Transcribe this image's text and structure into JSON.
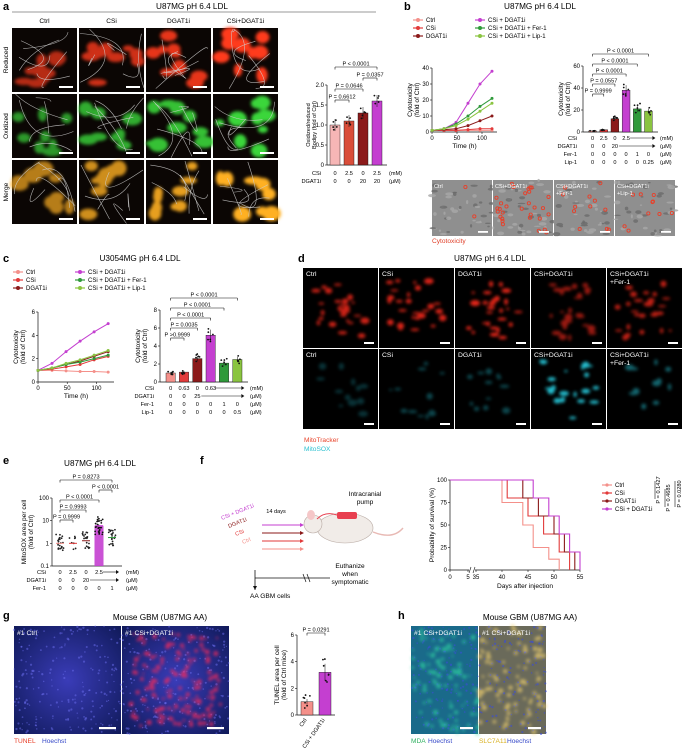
{
  "panels": {
    "a": {
      "letter": "a",
      "title": "U87MG pH 6.4 LDL",
      "columns": [
        "Ctrl",
        "CSi",
        "DGAT1i",
        "CSi+DGAT1i"
      ],
      "rows": [
        "Reduced",
        "Oxidized",
        "Merge"
      ],
      "pvals": [
        "P < 0.0001",
        "P = 0.0357",
        "P = 0.0646",
        "P = 0.6612"
      ],
      "ylabel_1": "Oxidized/reduced",
      "ylabel_2": "Bodipy (fold of Ctrl)",
      "yticks": [
        "0",
        "0.5",
        "1.0",
        "1.5",
        "2.0"
      ],
      "treat": {
        "CSi": {
          "label": "CSi",
          "vals": [
            "0",
            "2.5",
            "0",
            "2.5"
          ],
          "unit": "(mM)"
        },
        "DGAT1i": {
          "label": "DGAT1i",
          "vals": [
            "0",
            "0",
            "20",
            "20"
          ],
          "unit": "(μM)"
        }
      }
    },
    "b": {
      "letter": "b",
      "title": "U87MG pH 6.4 LDL",
      "legend": [
        "Ctrl",
        "CSi",
        "DGAT1i",
        "CSi + DGAT1i",
        "CSi + DGAT1i + Fer-1",
        "CSi + DGAT1i + Lip-1"
      ],
      "line_ylabel_1": "Cytotoxicity",
      "line_ylabel_2": "(fold of Ctrl)",
      "line_xlabel": "Time (h)",
      "line_yticks": [
        "0",
        "10",
        "20",
        "30",
        "40"
      ],
      "line_xticks": [
        "0",
        "50",
        "100"
      ],
      "bar_yticks": [
        "0",
        "20",
        "40",
        "60"
      ],
      "pvals": [
        "P < 0.0001",
        "P < 0.0001",
        "P < 0.0001",
        "P = 0.0557",
        "P = 0.9999"
      ],
      "treat": {
        "CSi": {
          "label": "CSi",
          "vals": [
            "0",
            "2.5",
            "0",
            "2.5"
          ],
          "unit": "(mM)"
        },
        "DGAT1i": {
          "label": "DGAT1i",
          "vals": [
            "0",
            "0",
            "20"
          ],
          "unit": "(μM)"
        },
        "Fer": {
          "label": "Fer-1",
          "vals": [
            "0",
            "0",
            "0",
            "0",
            "1",
            "0"
          ],
          "unit": "(μM)"
        },
        "Lip": {
          "label": "Lip-1",
          "vals": [
            "0",
            "0",
            "0",
            "0",
            "0",
            "0.25"
          ],
          "unit": "(μM)"
        }
      },
      "micro": [
        "Ctrl",
        "CSi+DGAT1i",
        "CSi+DGAT1i",
        "CSi+DGAT1i"
      ],
      "micro_sub": [
        "+Fer-1",
        "+Lip-1"
      ],
      "micro_caption": "Cytotoxicity"
    },
    "c": {
      "letter": "c",
      "title": "U3054MG pH 6.4 LDL",
      "legend": [
        "Ctrl",
        "CSi",
        "DGAT1i",
        "CSi + DGAT1i",
        "CSi + DGAT1i + Fer-1",
        "CSi + DGAT1i + Lip-1"
      ],
      "line_ylabel_1": "Cytotoxicity",
      "line_ylabel_2": "(fold of Ctrl)",
      "line_xlabel": "Time (h)",
      "line_yticks": [
        "0",
        "2",
        "4",
        "6"
      ],
      "line_xticks": [
        "0",
        "50",
        "100"
      ],
      "bar_ylabel_1": "Cytotoxicity",
      "bar_ylabel_2": "(fold of Ctrl)",
      "bar_yticks": [
        "0",
        "2",
        "4",
        "6",
        "8"
      ],
      "pvals": [
        "P < 0.0001",
        "P < 0.0001",
        "P < 0.0001",
        "P = 0.0035",
        "P >0.9999"
      ],
      "treat": {
        "CSi": {
          "label": "CSi",
          "vals": [
            "0",
            "0.63",
            "0",
            "0.63"
          ],
          "unit": "(mM)"
        },
        "DGAT1i": {
          "label": "DGAT1i",
          "vals": [
            "0",
            "0",
            "25"
          ],
          "unit": "(μM)"
        },
        "Fer": {
          "label": "Fer-1",
          "vals": [
            "0",
            "0",
            "0",
            "0",
            "1",
            "0"
          ],
          "unit": "(μM)"
        },
        "Lip": {
          "label": "Lip-1",
          "vals": [
            "0",
            "0",
            "0",
            "0",
            "0",
            "0.5"
          ],
          "unit": "(μM)"
        }
      }
    },
    "d": {
      "letter": "d",
      "title": "U87MG pH 6.4 LDL",
      "columns": [
        "Ctrl",
        "CSi",
        "DGAT1i",
        "CSi+DGAT1i",
        "CSi+DGAT1i"
      ],
      "col5_sub": "+Fer-1",
      "legend_red": "MitoTracker",
      "legend_cyan": "MitoSOX"
    },
    "e": {
      "letter": "e",
      "title": "U87MG pH 6.4 LDL",
      "ylabel_1": "MitoSOX area per cell",
      "ylabel_2": "(fold of Ctrl)",
      "yticks": [
        "0.1",
        "1",
        "10",
        "100"
      ],
      "pvals": [
        "P = 0.8273",
        "P < 0.0001",
        "P < 0.0001",
        "P = 0.9993",
        "P = 0.9999"
      ],
      "treat": {
        "CSi": {
          "label": "CSi",
          "vals": [
            "0",
            "2.5",
            "0",
            "2.5"
          ],
          "unit": "(mM)"
        },
        "DGAT1i": {
          "label": "DGAT1i",
          "vals": [
            "0",
            "0",
            "20"
          ],
          "unit": "(μM)"
        },
        "Fer": {
          "label": "Fer-1",
          "vals": [
            "0",
            "0",
            "0",
            "0",
            "1"
          ],
          "unit": "(μM)"
        }
      }
    },
    "f": {
      "letter": "f",
      "groups": [
        "CSi + DGAT1i",
        "DGAT1i",
        "CSi",
        "Ctrl"
      ],
      "pump_1": "Intracranial",
      "pump_2": "pump",
      "days": "14 days",
      "euth_1": "Euthanize",
      "euth_2": "when",
      "euth_3": "symptomatic",
      "cells": "AA GBM cells",
      "ylabel": "Probability of survival (%)",
      "xlabel": "Days after injection",
      "yticks": [
        "0",
        "25",
        "50",
        "75",
        "100"
      ],
      "xticks": [
        "0",
        "5",
        "35",
        "40",
        "45",
        "50",
        "55"
      ],
      "legend": [
        "Ctrl",
        "CSi",
        "DGAT1i",
        "CSi + DGAT1i"
      ],
      "pvals": [
        "P = 0.1427",
        "P = 0.4685",
        "P = 0.0280"
      ]
    },
    "g": {
      "letter": "g",
      "title": "Mouse GBM (U87MG AA)",
      "img1": "#1 Ctrl",
      "img2": "#1 CSi+DGAT1i",
      "legend_red": "TUNEL",
      "legend_blue": "Hoechst",
      "ylabel_1": "TUNEL area per cell",
      "ylabel_2": "(fold of Ctrl mice)",
      "yticks": [
        "0",
        "2",
        "4",
        "6"
      ],
      "pval": "P = 0.0291",
      "xcats": [
        "Ctrl",
        "CSi + DGAT1i"
      ]
    },
    "h": {
      "letter": "h",
      "title": "Mouse GBM (U87MG AA)",
      "img1": "#1 CSi+DGAT1i",
      "img2": "#1 CSi+DGAT1i",
      "legend_green": "MDA",
      "legend_blue1": "Hoechst",
      "legend_yellow": "SLC7A11",
      "legend_blue2": "Hoechst"
    }
  },
  "chart_data": [
    {
      "type": "bar",
      "panel": "a",
      "categories": [
        "CSi 0 / DGAT1i 0",
        "CSi 2.5 / DGAT1i 0",
        "CSi 0 / DGAT1i 20",
        "CSi 2.5 / DGAT1i 20"
      ],
      "values": [
        1.0,
        1.1,
        1.3,
        1.6
      ],
      "ylabel": "Oxidized/reduced Bodipy (fold of Ctrl)",
      "ylim": [
        0,
        2.0
      ]
    },
    {
      "type": "line",
      "panel": "b",
      "x": [
        0,
        24,
        48,
        72,
        96,
        120
      ],
      "series": [
        {
          "name": "Ctrl",
          "values": [
            1,
            1,
            1,
            1,
            1,
            1
          ]
        },
        {
          "name": "CSi",
          "values": [
            1,
            1,
            1,
            1.5,
            2,
            2
          ]
        },
        {
          "name": "DGAT1i",
          "values": [
            1,
            1.5,
            2,
            4,
            7,
            10
          ]
        },
        {
          "name": "CSi + DGAT1i",
          "values": [
            1,
            2,
            6,
            18,
            30,
            38
          ]
        },
        {
          "name": "CSi + DGAT1i + Fer-1",
          "values": [
            1,
            2,
            5,
            10,
            16,
            21
          ]
        },
        {
          "name": "CSi + DGAT1i + Lip-1",
          "values": [
            1,
            2,
            4,
            8,
            13,
            18
          ]
        }
      ],
      "xlabel": "Time (h)",
      "ylabel": "Cytotoxicity (fold of Ctrl)",
      "ylim": [
        0,
        40
      ]
    },
    {
      "type": "bar",
      "panel": "b",
      "categories": [
        "Ctrl",
        "CSi",
        "DGAT1i",
        "CSi + DGAT1i",
        "CSi + DGAT1i + Fer-1",
        "CSi + DGAT1i + Lip-1"
      ],
      "values": [
        1,
        2,
        12,
        38,
        21,
        19
      ],
      "ylabel": "Cytotoxicity (fold of Ctrl)",
      "ylim": [
        0,
        60
      ]
    },
    {
      "type": "line",
      "panel": "c",
      "x": [
        0,
        24,
        48,
        72,
        96,
        120
      ],
      "series": [
        {
          "name": "Ctrl",
          "values": [
            1,
            1,
            0.95,
            0.9,
            0.9,
            0.85
          ]
        },
        {
          "name": "CSi",
          "values": [
            1,
            1.1,
            1.3,
            1.5,
            1.9,
            2.2
          ]
        },
        {
          "name": "DGAT1i",
          "values": [
            1,
            1.2,
            1.5,
            1.8,
            2.2,
            2.6
          ]
        },
        {
          "name": "CSi + DGAT1i",
          "values": [
            1,
            1.6,
            2.6,
            3.5,
            4.3,
            5.0
          ]
        },
        {
          "name": "CSi + DGAT1i + Fer-1",
          "values": [
            1,
            1.2,
            1.5,
            1.7,
            2.0,
            2.3
          ]
        },
        {
          "name": "CSi + DGAT1i + Lip-1",
          "values": [
            1,
            1.2,
            1.6,
            1.9,
            2.3,
            2.7
          ]
        }
      ],
      "xlabel": "Time (h)",
      "ylabel": "Cytotoxicity (fold of Ctrl)",
      "ylim": [
        0,
        6
      ]
    },
    {
      "type": "bar",
      "panel": "c",
      "categories": [
        "Ctrl",
        "CSi",
        "DGAT1i",
        "CSi + DGAT1i",
        "CSi + DGAT1i + Fer-1",
        "CSi + DGAT1i + Lip-1"
      ],
      "values": [
        1.0,
        1.1,
        2.6,
        5.2,
        2.1,
        2.5
      ],
      "ylabel": "Cytotoxicity (fold of Ctrl)",
      "ylim": [
        0,
        8
      ]
    },
    {
      "type": "scatter",
      "panel": "e",
      "categories": [
        "Ctrl",
        "CSi",
        "DGAT1i",
        "CSi + DGAT1i",
        "CSi + DGAT1i + Fer-1"
      ],
      "values": [
        1.0,
        1.0,
        1.3,
        6.0,
        1.8
      ],
      "ylabel": "MitoSOX area per cell (fold of Ctrl)",
      "ylim": [
        0.1,
        100
      ],
      "yscale": "log"
    },
    {
      "type": "line",
      "panel": "f",
      "series": [
        {
          "name": "Ctrl",
          "x": [
            0,
            38,
            40,
            44,
            46,
            49,
            51
          ],
          "values": [
            100,
            100,
            75,
            50,
            25,
            12,
            0
          ]
        },
        {
          "name": "CSi",
          "x": [
            0,
            39,
            41,
            45,
            48,
            51,
            53
          ],
          "values": [
            100,
            100,
            80,
            60,
            40,
            20,
            0
          ]
        },
        {
          "name": "DGAT1i",
          "x": [
            0,
            42,
            44,
            47,
            50,
            52,
            54
          ],
          "values": [
            100,
            100,
            80,
            60,
            40,
            20,
            0
          ]
        },
        {
          "name": "CSi + DGAT1i",
          "x": [
            0,
            43,
            46,
            49,
            51,
            53,
            55
          ],
          "values": [
            100,
            100,
            80,
            60,
            40,
            20,
            0
          ]
        }
      ],
      "xlabel": "Days after injection",
      "ylabel": "Probability of survival (%)",
      "ylim": [
        0,
        100
      ]
    },
    {
      "type": "bar",
      "panel": "g",
      "categories": [
        "Ctrl",
        "CSi + DGAT1i"
      ],
      "values": [
        1.0,
        3.2
      ],
      "ylabel": "TUNEL area per cell (fold of Ctrl mice)",
      "ylim": [
        0,
        6
      ]
    }
  ]
}
